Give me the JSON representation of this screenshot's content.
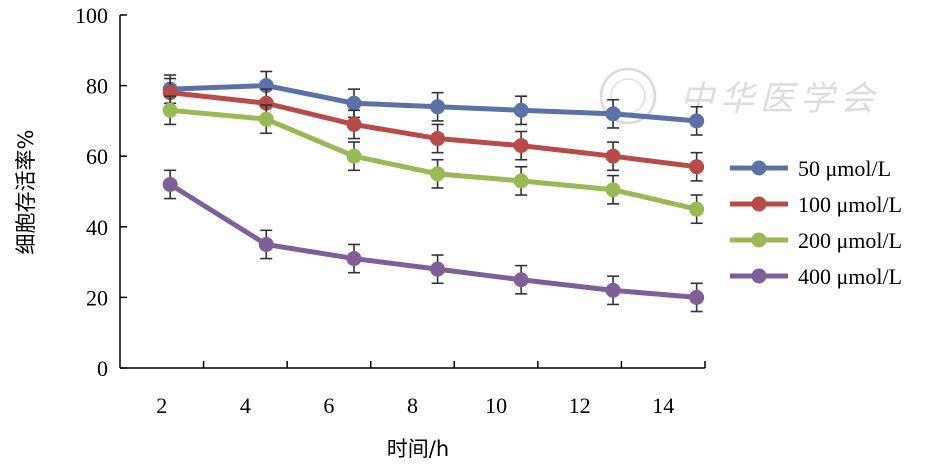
{
  "chart_data": {
    "type": "line",
    "xlabel": "时间/h",
    "ylabel": "细胞存活率%",
    "ylim": [
      0,
      100
    ],
    "xlim": [
      1,
      15
    ],
    "x_ticks": [
      "2",
      "4",
      "6",
      "8",
      "10",
      "12",
      "14"
    ],
    "y_ticks": [
      "0",
      "20",
      "40",
      "60",
      "80",
      "100"
    ],
    "x": [
      2.2,
      4.5,
      6.6,
      8.6,
      10.6,
      12.8,
      14.8
    ],
    "legend_position": "right",
    "grid": false,
    "error_bar": 4,
    "series": [
      {
        "name": "50 μmol/L",
        "color": "#5b72a8",
        "values": [
          79,
          80,
          75,
          74,
          73,
          72,
          70
        ]
      },
      {
        "name": "100 μmol/L",
        "color": "#b84a48",
        "values": [
          78,
          75,
          69,
          65,
          63,
          60,
          57
        ]
      },
      {
        "name": "200 μmol/L",
        "color": "#97ba55",
        "values": [
          73,
          70.5,
          60,
          55,
          53,
          50.5,
          45
        ]
      },
      {
        "name": "400 μmol/L",
        "color": "#7e5f98",
        "values": [
          52,
          35,
          31,
          28,
          25,
          22,
          20
        ]
      }
    ]
  },
  "watermark": {
    "text": "中华医学会"
  }
}
